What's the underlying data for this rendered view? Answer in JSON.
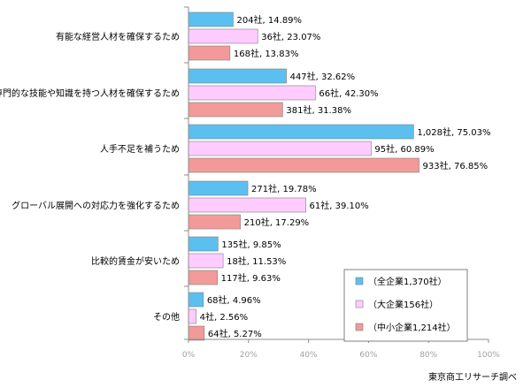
{
  "chart_data": {
    "type": "bar",
    "orientation": "horizontal",
    "categories": [
      "有能な経営人材を確保するため",
      "専門的な技能や知識を持つ人材を確保するため",
      "人手不足を補うため",
      "グローバル展開への対応力を強化するため",
      "比較的賃金が安いため",
      "その他"
    ],
    "series": [
      {
        "name": "（全企業1,370社）",
        "color": "#5bc0f0",
        "values": [
          14.89,
          32.62,
          75.03,
          19.78,
          9.85,
          4.96
        ],
        "labels": [
          "204社, 14.89%",
          "447社, 32.62%",
          "1,028社, 75.03%",
          "271社, 19.78%",
          "135社, 9.85%",
          "68社, 4.96%"
        ]
      },
      {
        "name": "（大企業156社）",
        "color": "#ffccff",
        "values": [
          23.07,
          42.3,
          60.89,
          39.1,
          11.53,
          2.56
        ],
        "labels": [
          "36社, 23.07%",
          "66社, 42.30%",
          "95社, 60.89%",
          "61社, 39.10%",
          "18社, 11.53%",
          "4社, 2.56%"
        ]
      },
      {
        "name": "（中小企業1,214社）",
        "color": "#f29a9a",
        "values": [
          13.83,
          31.38,
          76.85,
          17.29,
          9.63,
          5.27
        ],
        "labels": [
          "168社, 13.83%",
          "381社, 31.38%",
          "933社, 76.85%",
          "210社, 17.29%",
          "117社, 9.63%",
          "64社, 5.27%"
        ]
      }
    ],
    "xlim": [
      0,
      100
    ],
    "xticks": [
      0,
      20,
      40,
      60,
      80,
      100
    ],
    "xtick_labels": [
      "0%",
      "20%",
      "40%",
      "60%",
      "80%",
      "100%"
    ],
    "grid": false,
    "legend": "bottom-right"
  },
  "source_note": "東京商工リサーチ調べ"
}
